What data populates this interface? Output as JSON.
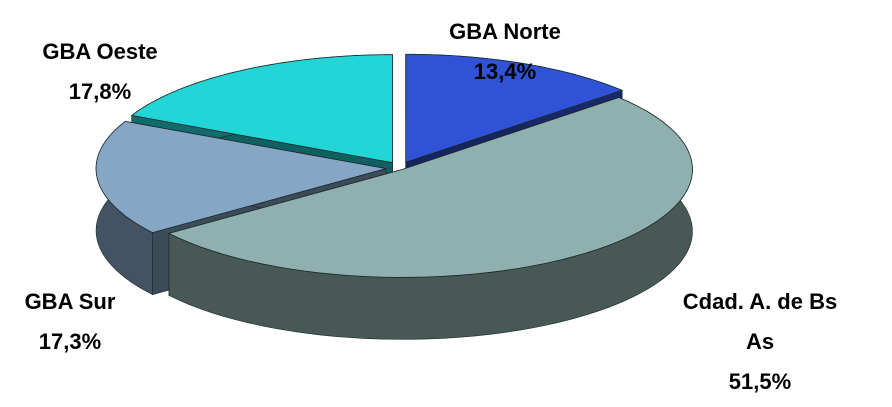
{
  "chart_data": {
    "type": "pie3d",
    "categories": [
      "GBA Norte",
      "Cdad. A. de Bs As",
      "GBA Sur",
      "GBA Oeste"
    ],
    "values": [
      13.4,
      51.5,
      17.3,
      17.8
    ],
    "value_labels": [
      "13,4%",
      "51,5%",
      "17,3%",
      "17,8%"
    ],
    "colors": [
      "#2f52d6",
      "#8fb0ae",
      "#86a6c6",
      "#22d6d8"
    ]
  }
}
